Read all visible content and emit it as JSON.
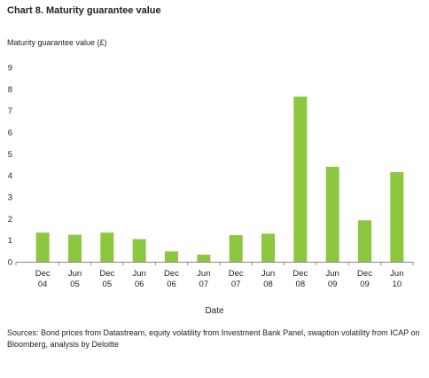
{
  "chart_data": {
    "type": "bar",
    "title": "Chart 8. Maturity guarantee value",
    "ylabel": "Maturity guarantee value (£)",
    "xlabel": "Date",
    "ylim": [
      0,
      9
    ],
    "yticks": [
      0,
      1,
      2,
      3,
      4,
      5,
      6,
      7,
      8,
      9
    ],
    "categories": [
      [
        "Dec",
        "04"
      ],
      [
        "Jun",
        "05"
      ],
      [
        "Dec",
        "05"
      ],
      [
        "Jun",
        "06"
      ],
      [
        "Dec",
        "06"
      ],
      [
        "Jun",
        "07"
      ],
      [
        "Dec",
        "07"
      ],
      [
        "Jun",
        "08"
      ],
      [
        "Dec",
        "08"
      ],
      [
        "Jun",
        "09"
      ],
      [
        "Dec",
        "09"
      ],
      [
        "Jun",
        "10"
      ]
    ],
    "values": [
      1.35,
      1.25,
      1.35,
      1.05,
      0.48,
      0.33,
      1.23,
      1.3,
      7.65,
      4.4,
      1.92,
      4.15
    ],
    "bar_color": "#8dc63f",
    "grid": false,
    "legend": "none"
  },
  "source_note": "Sources: Bond prices from Datastream, equity volatility from Investment Bank Panel, swaption volatility from ICAP on Bloomberg, analysis by Deloitte"
}
